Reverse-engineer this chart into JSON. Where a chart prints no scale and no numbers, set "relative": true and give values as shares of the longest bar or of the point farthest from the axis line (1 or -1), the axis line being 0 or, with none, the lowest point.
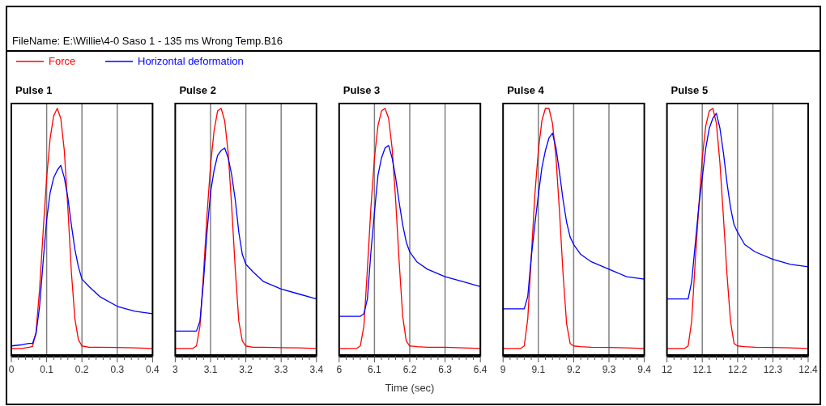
{
  "chart_data": [
    {
      "type": "line",
      "title": "Pulse 1",
      "relative": true,
      "grid": "x",
      "tick_labels": "x",
      "legend": "top right",
      "annotations": [
        "FileName: E:\\Willie\\4-0 Saso 1 - 135 ms Wrong Temp.B16"
      ],
      "xlim": [
        0,
        0.4
      ],
      "xticks": [
        0,
        {
          "value": 0.02,
          "label": null
        },
        {
          "value": 0.04,
          "label": null
        },
        {
          "value": 0.06,
          "label": null
        },
        {
          "value": 0.08,
          "label": null
        },
        0.1,
        {
          "value": 0.12,
          "label": null
        },
        {
          "value": 0.14,
          "label": null
        },
        {
          "value": 0.16,
          "label": null
        },
        {
          "value": 0.18,
          "label": null
        },
        0.2,
        {
          "value": 0.22,
          "label": null
        },
        {
          "value": 0.24,
          "label": null
        },
        {
          "value": 0.26,
          "label": null
        },
        {
          "value": 0.28,
          "label": null
        },
        0.3,
        {
          "value": 0.32,
          "label": null
        },
        {
          "value": 0.34,
          "label": null
        },
        {
          "value": 0.36,
          "label": null
        },
        {
          "value": 0.38,
          "label": null
        },
        0.4
      ],
      "x": [
        0,
        0.03,
        0.05,
        0.06,
        0.07,
        0.08,
        0.09,
        0.1,
        0.11,
        0.12,
        0.13,
        0.14,
        0.15,
        0.16,
        0.17,
        0.18,
        0.19,
        0.2,
        0.22,
        0.25,
        0.3,
        0.35,
        0.4
      ],
      "series": [
        {
          "name": "Force",
          "color": "#ff0000",
          "values": [
            0.03,
            0.03,
            0.035,
            0.038,
            0.097,
            0.27,
            0.5,
            0.72,
            0.88,
            0.97,
            1.0,
            0.96,
            0.83,
            0.6,
            0.34,
            0.15,
            0.065,
            0.04,
            0.035,
            0.035,
            0.034,
            0.032,
            0.03
          ]
        },
        {
          "name": "Horizontal deformation",
          "color": "#0000ff",
          "values": [
            0.04,
            0.045,
            0.05,
            0.05,
            0.09,
            0.2,
            0.38,
            0.55,
            0.66,
            0.72,
            0.75,
            0.77,
            0.72,
            0.64,
            0.53,
            0.43,
            0.36,
            0.31,
            0.28,
            0.24,
            0.2,
            0.18,
            0.17
          ]
        }
      ]
    },
    {
      "type": "line",
      "title": "Pulse 2",
      "relative": true,
      "grid": "x",
      "tick_labels": "x",
      "xlim": [
        3,
        3.4
      ],
      "xticks": [
        3,
        {
          "value": 3.02,
          "label": null
        },
        {
          "value": 3.04,
          "label": null
        },
        {
          "value": 3.06,
          "label": null
        },
        {
          "value": 3.08,
          "label": null
        },
        3.1,
        {
          "value": 3.12,
          "label": null
        },
        {
          "value": 3.14,
          "label": null
        },
        {
          "value": 3.16,
          "label": null
        },
        {
          "value": 3.18,
          "label": null
        },
        3.2,
        {
          "value": 3.22,
          "label": null
        },
        {
          "value": 3.24,
          "label": null
        },
        {
          "value": 3.26,
          "label": null
        },
        {
          "value": 3.28,
          "label": null
        },
        3.3,
        {
          "value": 3.32,
          "label": null
        },
        {
          "value": 3.34,
          "label": null
        },
        {
          "value": 3.36,
          "label": null
        },
        {
          "value": 3.38,
          "label": null
        },
        3.4
      ],
      "x": [
        3,
        3.03,
        3.05,
        3.06,
        3.07,
        3.08,
        3.09,
        3.1,
        3.11,
        3.12,
        3.13,
        3.14,
        3.15,
        3.16,
        3.17,
        3.18,
        3.19,
        3.2,
        3.22,
        3.25,
        3.3,
        3.35,
        3.4
      ],
      "series": [
        {
          "color": "#ff0000",
          "values": [
            0.03,
            0.03,
            0.03,
            0.04,
            0.12,
            0.33,
            0.57,
            0.77,
            0.91,
            0.99,
            1.0,
            0.95,
            0.82,
            0.6,
            0.35,
            0.14,
            0.06,
            0.04,
            0.035,
            0.035,
            0.033,
            0.032,
            0.03
          ]
        },
        {
          "color": "#0000ff",
          "values": [
            0.1,
            0.1,
            0.1,
            0.1,
            0.14,
            0.3,
            0.5,
            0.66,
            0.75,
            0.81,
            0.83,
            0.84,
            0.8,
            0.73,
            0.63,
            0.5,
            0.41,
            0.37,
            0.34,
            0.3,
            0.27,
            0.25,
            0.23
          ]
        }
      ]
    },
    {
      "type": "line",
      "title": "Pulse 3",
      "xlabel": "Time (sec)",
      "relative": true,
      "grid": "x",
      "tick_labels": "x",
      "xlim": [
        6,
        6.4
      ],
      "xticks": [
        6,
        {
          "value": 6.02,
          "label": null
        },
        {
          "value": 6.04,
          "label": null
        },
        {
          "value": 6.06,
          "label": null
        },
        {
          "value": 6.08,
          "label": null
        },
        6.1,
        {
          "value": 6.12,
          "label": null
        },
        {
          "value": 6.14,
          "label": null
        },
        {
          "value": 6.16,
          "label": null
        },
        {
          "value": 6.18,
          "label": null
        },
        6.2,
        {
          "value": 6.22,
          "label": null
        },
        {
          "value": 6.24,
          "label": null
        },
        {
          "value": 6.26,
          "label": null
        },
        {
          "value": 6.28,
          "label": null
        },
        6.3,
        {
          "value": 6.32,
          "label": null
        },
        {
          "value": 6.34,
          "label": null
        },
        {
          "value": 6.36,
          "label": null
        },
        {
          "value": 6.38,
          "label": null
        },
        6.4
      ],
      "x": [
        6,
        6.03,
        6.05,
        6.06,
        6.07,
        6.08,
        6.09,
        6.1,
        6.11,
        6.12,
        6.13,
        6.14,
        6.15,
        6.16,
        6.17,
        6.18,
        6.19,
        6.2,
        6.22,
        6.25,
        6.3,
        6.35,
        6.4
      ],
      "series": [
        {
          "color": "#ff0000",
          "values": [
            0.03,
            0.03,
            0.03,
            0.04,
            0.12,
            0.35,
            0.6,
            0.8,
            0.93,
            0.99,
            1.0,
            0.96,
            0.84,
            0.63,
            0.38,
            0.16,
            0.06,
            0.04,
            0.037,
            0.035,
            0.035,
            0.032,
            0.03
          ]
        },
        {
          "color": "#0000ff",
          "values": [
            0.16,
            0.16,
            0.16,
            0.16,
            0.17,
            0.23,
            0.42,
            0.58,
            0.73,
            0.8,
            0.84,
            0.85,
            0.8,
            0.72,
            0.62,
            0.53,
            0.46,
            0.42,
            0.38,
            0.35,
            0.32,
            0.3,
            0.28
          ]
        }
      ]
    },
    {
      "type": "line",
      "title": "Pulse 4",
      "relative": true,
      "grid": "x",
      "tick_labels": "x",
      "xlim": [
        9,
        9.4
      ],
      "xticks": [
        9,
        {
          "value": 9.02,
          "label": null
        },
        {
          "value": 9.04,
          "label": null
        },
        {
          "value": 9.06,
          "label": null
        },
        {
          "value": 9.08,
          "label": null
        },
        9.1,
        {
          "value": 9.12,
          "label": null
        },
        {
          "value": 9.14,
          "label": null
        },
        {
          "value": 9.16,
          "label": null
        },
        {
          "value": 9.18,
          "label": null
        },
        9.2,
        {
          "value": 9.22,
          "label": null
        },
        {
          "value": 9.24,
          "label": null
        },
        {
          "value": 9.26,
          "label": null
        },
        {
          "value": 9.28,
          "label": null
        },
        9.3,
        {
          "value": 9.32,
          "label": null
        },
        {
          "value": 9.34,
          "label": null
        },
        {
          "value": 9.36,
          "label": null
        },
        {
          "value": 9.38,
          "label": null
        },
        9.4
      ],
      "x": [
        9,
        9.03,
        9.05,
        9.06,
        9.07,
        9.08,
        9.09,
        9.1,
        9.11,
        9.12,
        9.13,
        9.14,
        9.15,
        9.16,
        9.17,
        9.18,
        9.19,
        9.2,
        9.22,
        9.25,
        9.3,
        9.35,
        9.4
      ],
      "series": [
        {
          "color": "#ff0000",
          "values": [
            0.03,
            0.03,
            0.03,
            0.04,
            0.15,
            0.4,
            0.65,
            0.83,
            0.95,
            1.0,
            1.0,
            0.94,
            0.8,
            0.58,
            0.33,
            0.13,
            0.05,
            0.04,
            0.037,
            0.035,
            0.034,
            0.032,
            0.03
          ]
        },
        {
          "color": "#0000ff",
          "values": [
            0.19,
            0.19,
            0.19,
            0.19,
            0.24,
            0.4,
            0.53,
            0.65,
            0.76,
            0.83,
            0.88,
            0.9,
            0.84,
            0.74,
            0.63,
            0.54,
            0.48,
            0.45,
            0.41,
            0.38,
            0.35,
            0.32,
            0.31
          ]
        }
      ]
    },
    {
      "type": "line",
      "title": "Pulse 5",
      "relative": true,
      "grid": "x",
      "tick_labels": "x",
      "xlim": [
        12,
        12.4
      ],
      "xticks": [
        12,
        {
          "value": 12.02,
          "label": null
        },
        {
          "value": 12.04,
          "label": null
        },
        {
          "value": 12.06,
          "label": null
        },
        {
          "value": 12.08,
          "label": null
        },
        12.1,
        {
          "value": 12.12,
          "label": null
        },
        {
          "value": 12.14,
          "label": null
        },
        {
          "value": 12.16,
          "label": null
        },
        {
          "value": 12.18,
          "label": null
        },
        12.2,
        {
          "value": 12.22,
          "label": null
        },
        {
          "value": 12.24,
          "label": null
        },
        {
          "value": 12.26,
          "label": null
        },
        {
          "value": 12.28,
          "label": null
        },
        12.3,
        {
          "value": 12.32,
          "label": null
        },
        {
          "value": 12.34,
          "label": null
        },
        {
          "value": 12.36,
          "label": null
        },
        {
          "value": 12.38,
          "label": null
        },
        12.4
      ],
      "x": [
        12,
        12.03,
        12.05,
        12.06,
        12.07,
        12.08,
        12.09,
        12.1,
        12.11,
        12.12,
        12.13,
        12.14,
        12.15,
        12.16,
        12.17,
        12.18,
        12.19,
        12.2,
        12.22,
        12.25,
        12.3,
        12.35,
        12.4
      ],
      "series": [
        {
          "color": "#ff0000",
          "values": [
            0.03,
            0.03,
            0.03,
            0.04,
            0.14,
            0.38,
            0.6,
            0.8,
            0.93,
            0.99,
            1.0,
            0.94,
            0.78,
            0.56,
            0.33,
            0.14,
            0.05,
            0.04,
            0.037,
            0.035,
            0.034,
            0.032,
            0.03
          ]
        },
        {
          "color": "#0000ff",
          "values": [
            0.23,
            0.23,
            0.23,
            0.23,
            0.3,
            0.45,
            0.6,
            0.72,
            0.84,
            0.92,
            0.96,
            0.98,
            0.92,
            0.82,
            0.7,
            0.6,
            0.53,
            0.5,
            0.45,
            0.42,
            0.39,
            0.37,
            0.36
          ]
        }
      ]
    }
  ]
}
